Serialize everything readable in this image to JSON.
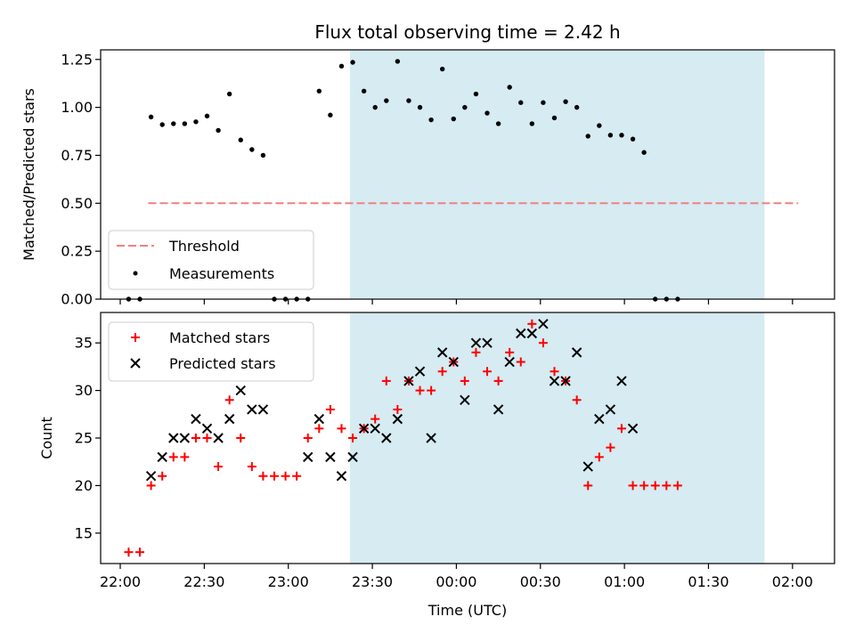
{
  "figure_title": "Flux total observing time = 2.42 h",
  "chart_data": [
    {
      "type": "scatter",
      "panel": "top",
      "ylabel": "Matched/Predicted stars",
      "xlabel": "",
      "ylim": [
        0,
        1.3
      ],
      "yticks": [
        0,
        0.25,
        0.5,
        0.75,
        1.0,
        1.25
      ],
      "ytick_labels": [
        "0.00",
        "0.25",
        "0.50",
        "0.75",
        "1.00",
        "1.25"
      ],
      "legend_placement": "lower-left",
      "observing_window": {
        "start": "23:22",
        "end": "01:50"
      },
      "threshold": {
        "name": "Threshold",
        "value": 0.5,
        "x_start": "22:10",
        "x_end": "02:02",
        "color": "#f08080"
      },
      "series": [
        {
          "name": "Measurements",
          "color": "#000000",
          "points": [
            [
              "22:03",
              0
            ],
            [
              "22:07",
              0
            ],
            [
              "22:11",
              0.95
            ],
            [
              "22:15",
              0.91
            ],
            [
              "22:19",
              0.915
            ],
            [
              "22:23",
              0.915
            ],
            [
              "22:27",
              0.925
            ],
            [
              "22:31",
              0.955
            ],
            [
              "22:35",
              0.88
            ],
            [
              "22:39",
              1.07
            ],
            [
              "22:43",
              0.83
            ],
            [
              "22:47",
              0.78
            ],
            [
              "22:51",
              0.75
            ],
            [
              "22:55",
              0
            ],
            [
              "22:59",
              0
            ],
            [
              "23:03",
              0
            ],
            [
              "23:07",
              0
            ],
            [
              "23:11",
              1.085
            ],
            [
              "23:15",
              0.96
            ],
            [
              "23:19",
              1.215
            ],
            [
              "23:23",
              1.235
            ],
            [
              "23:27",
              1.085
            ],
            [
              "23:31",
              1.0
            ],
            [
              "23:35",
              1.035
            ],
            [
              "23:39",
              1.24
            ],
            [
              "23:43",
              1.035
            ],
            [
              "23:47",
              1.0
            ],
            [
              "23:51",
              0.935
            ],
            [
              "23:55",
              1.2
            ],
            [
              "23:59",
              0.94
            ],
            [
              "00:03",
              1.0
            ],
            [
              "00:07",
              1.07
            ],
            [
              "00:11",
              0.97
            ],
            [
              "00:15",
              0.915
            ],
            [
              "00:19",
              1.105
            ],
            [
              "00:23",
              1.025
            ],
            [
              "00:27",
              0.915
            ],
            [
              "00:31",
              1.025
            ],
            [
              "00:35",
              0.945
            ],
            [
              "00:39",
              1.03
            ],
            [
              "00:43",
              1.0
            ],
            [
              "00:47",
              0.85
            ],
            [
              "00:51",
              0.905
            ],
            [
              "00:55",
              0.855
            ],
            [
              "00:59",
              0.855
            ],
            [
              "01:03",
              0.835
            ],
            [
              "01:07",
              0.765
            ],
            [
              "01:11",
              0
            ],
            [
              "01:15",
              0
            ],
            [
              "01:19",
              0
            ]
          ]
        }
      ]
    },
    {
      "type": "scatter",
      "panel": "bottom",
      "xlabel": "Time (UTC)",
      "ylabel": "Count",
      "ylim": [
        11.8,
        38.2
      ],
      "yticks": [
        15,
        20,
        25,
        30,
        35
      ],
      "ytick_labels": [
        "15",
        "20",
        "25",
        "30",
        "35"
      ],
      "xlim": [
        "21:53",
        "02:15"
      ],
      "xticks": [
        "22:00",
        "22:30",
        "23:00",
        "23:30",
        "00:00",
        "00:30",
        "01:00",
        "01:30",
        "02:00"
      ],
      "xtick_labels": [
        "22:00",
        "22:30",
        "23:00",
        "23:30",
        "00:00",
        "00:30",
        "01:00",
        "01:30",
        "02:00"
      ],
      "legend_placement": "top-left",
      "observing_window": {
        "start": "23:22",
        "end": "01:50"
      },
      "series": [
        {
          "name": "Matched stars",
          "color": "#ff0000",
          "marker": "plus",
          "points": [
            [
              "22:03",
              13
            ],
            [
              "22:07",
              13
            ],
            [
              "22:11",
              20
            ],
            [
              "22:15",
              21
            ],
            [
              "22:19",
              23
            ],
            [
              "22:23",
              23
            ],
            [
              "22:27",
              25
            ],
            [
              "22:31",
              25
            ],
            [
              "22:35",
              22
            ],
            [
              "22:39",
              29
            ],
            [
              "22:43",
              25
            ],
            [
              "22:47",
              22
            ],
            [
              "22:51",
              21
            ],
            [
              "22:55",
              21
            ],
            [
              "22:59",
              21
            ],
            [
              "23:03",
              21
            ],
            [
              "23:07",
              25
            ],
            [
              "23:11",
              26
            ],
            [
              "23:15",
              28
            ],
            [
              "23:19",
              26
            ],
            [
              "23:23",
              25
            ],
            [
              "23:27",
              26
            ],
            [
              "23:31",
              27
            ],
            [
              "23:35",
              31
            ],
            [
              "23:39",
              28
            ],
            [
              "23:43",
              31
            ],
            [
              "23:47",
              30
            ],
            [
              "23:51",
              30
            ],
            [
              "23:55",
              32
            ],
            [
              "23:59",
              33
            ],
            [
              "00:03",
              31
            ],
            [
              "00:07",
              34
            ],
            [
              "00:11",
              32
            ],
            [
              "00:15",
              31
            ],
            [
              "00:19",
              34
            ],
            [
              "00:23",
              33
            ],
            [
              "00:27",
              37
            ],
            [
              "00:31",
              35
            ],
            [
              "00:35",
              32
            ],
            [
              "00:39",
              31
            ],
            [
              "00:43",
              29
            ],
            [
              "00:47",
              20
            ],
            [
              "00:51",
              23
            ],
            [
              "00:55",
              24
            ],
            [
              "00:59",
              26
            ],
            [
              "01:03",
              20
            ],
            [
              "01:07",
              20
            ],
            [
              "01:11",
              20
            ],
            [
              "01:15",
              20
            ],
            [
              "01:19",
              20
            ]
          ]
        },
        {
          "name": "Predicted stars",
          "color": "#000000",
          "marker": "x",
          "points": [
            [
              "22:11",
              21
            ],
            [
              "22:15",
              23
            ],
            [
              "22:19",
              25
            ],
            [
              "22:23",
              25
            ],
            [
              "22:27",
              27
            ],
            [
              "22:31",
              26
            ],
            [
              "22:35",
              25
            ],
            [
              "22:39",
              27
            ],
            [
              "22:43",
              30
            ],
            [
              "22:47",
              28
            ],
            [
              "22:51",
              28
            ],
            [
              "23:07",
              23
            ],
            [
              "23:11",
              27
            ],
            [
              "23:15",
              23
            ],
            [
              "23:19",
              21
            ],
            [
              "23:23",
              23
            ],
            [
              "23:27",
              26
            ],
            [
              "23:31",
              26
            ],
            [
              "23:35",
              25
            ],
            [
              "23:39",
              27
            ],
            [
              "23:43",
              31
            ],
            [
              "23:47",
              32
            ],
            [
              "23:51",
              25
            ],
            [
              "23:55",
              34
            ],
            [
              "23:59",
              33
            ],
            [
              "00:03",
              29
            ],
            [
              "00:07",
              35
            ],
            [
              "00:11",
              35
            ],
            [
              "00:15",
              28
            ],
            [
              "00:19",
              33
            ],
            [
              "00:23",
              36
            ],
            [
              "00:27",
              36
            ],
            [
              "00:31",
              37
            ],
            [
              "00:35",
              31
            ],
            [
              "00:39",
              31
            ],
            [
              "00:43",
              34
            ],
            [
              "00:47",
              22
            ],
            [
              "00:51",
              27
            ],
            [
              "00:55",
              28
            ],
            [
              "00:59",
              31
            ],
            [
              "01:03",
              26
            ]
          ]
        }
      ]
    }
  ]
}
